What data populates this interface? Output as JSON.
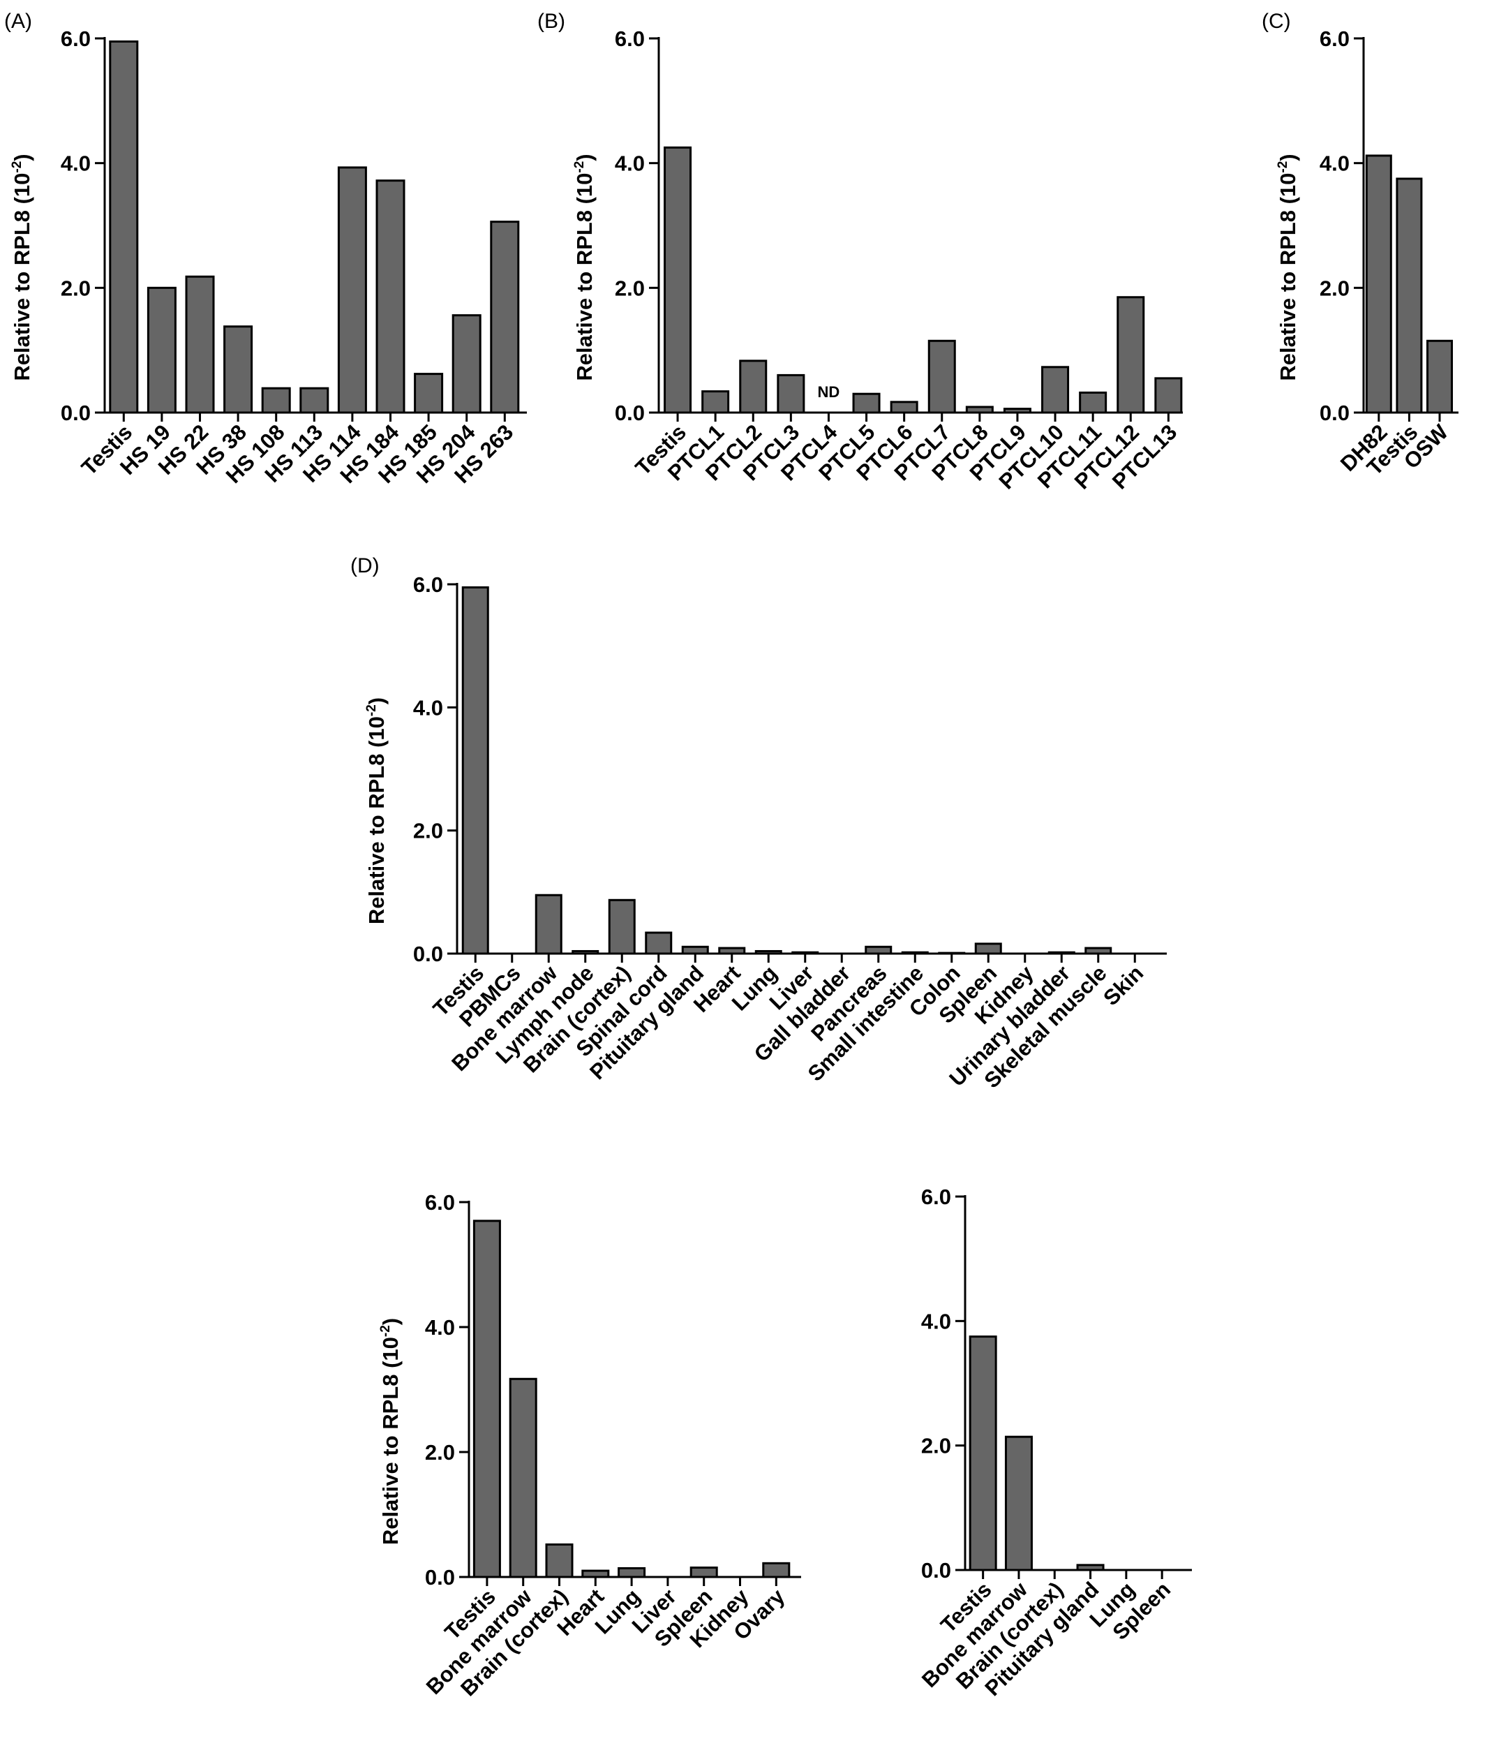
{
  "bar_color": "#666666",
  "chart_data": [
    {
      "type": "bar",
      "panel_label": "(A)",
      "ylabel": "Relative to RPL8 (10",
      "ylabel_exp": "-2",
      "ylabel_close": ")",
      "ylim": [
        0,
        6.0
      ],
      "yticks": [
        "0.0",
        "2.0",
        "4.0",
        "6.0"
      ],
      "categories": [
        "Testis",
        "HS 19",
        "HS 22",
        "HS 38",
        "HS 108",
        "HS 113",
        "HS 114",
        "HS 184",
        "HS 185",
        "HS 204",
        "HS 263"
      ],
      "values": [
        5.95,
        2.0,
        2.18,
        1.38,
        0.39,
        0.39,
        3.93,
        3.72,
        0.62,
        1.56,
        3.06
      ]
    },
    {
      "type": "bar",
      "panel_label": "(B)",
      "ylabel": "Relative to RPL8 (10",
      "ylabel_exp": "-2",
      "ylabel_close": ")",
      "ylim": [
        0,
        6.0
      ],
      "yticks": [
        "0.0",
        "2.0",
        "4.0",
        "6.0"
      ],
      "categories": [
        "Testis",
        "PTCL1",
        "PTCL2",
        "PTCL3",
        "PTCL4",
        "PTCL5",
        "PTCL6",
        "PTCL7",
        "PTCL8",
        "PTCL9",
        "PTCL10",
        "PTCL11",
        "PTCL12",
        "PTCL13"
      ],
      "values": [
        4.25,
        0.34,
        0.83,
        0.6,
        0,
        0.3,
        0.17,
        1.15,
        0.09,
        0.06,
        0.73,
        0.32,
        1.85,
        0.55
      ],
      "annotations": [
        {
          "category": "PTCL4",
          "text": "ND"
        }
      ]
    },
    {
      "type": "bar",
      "panel_label": "(C)",
      "ylabel": "Relative to RPL8 (10",
      "ylabel_exp": "-2",
      "ylabel_close": ")",
      "ylim": [
        0,
        6.0
      ],
      "yticks": [
        "0.0",
        "2.0",
        "4.0",
        "6.0"
      ],
      "categories": [
        "DH82",
        "Testis",
        "OSW"
      ],
      "values": [
        4.12,
        3.75,
        1.15
      ]
    },
    {
      "type": "bar",
      "panel_label": "(D)",
      "ylabel": "Relative to RPL8 (10",
      "ylabel_exp": "-2",
      "ylabel_close": ")",
      "ylim": [
        0,
        6.0
      ],
      "yticks": [
        "0.0",
        "2.0",
        "4.0",
        "6.0"
      ],
      "categories": [
        "Testis",
        "PBMCs",
        "Bone marrow",
        "Lymph node",
        "Brain (cortex)",
        "Spinal cord",
        "Pituitary gland",
        "Heart",
        "Lung",
        "Liver",
        "Gall bladder",
        "Pancreas",
        "Small intestine",
        "Colon",
        "Spleen",
        "Kidney",
        "Urinary bladder",
        "Skeletal muscle",
        "Skin"
      ],
      "values": [
        5.95,
        0,
        0.95,
        0.04,
        0.87,
        0.34,
        0.11,
        0.09,
        0.04,
        0.02,
        0,
        0.11,
        0.02,
        0.01,
        0.16,
        0,
        0.02,
        0.09,
        0
      ]
    },
    {
      "type": "bar",
      "panel_label": "",
      "ylabel": "Relative to RPL8 (10",
      "ylabel_exp": "-2",
      "ylabel_close": ")",
      "ylim": [
        0,
        6.0
      ],
      "yticks": [
        "0.0",
        "2.0",
        "4.0",
        "6.0"
      ],
      "categories": [
        "Testis",
        "Bone marrow",
        "Brain (cortex)",
        "Heart",
        "Lung",
        "Liver",
        "Spleen",
        "Kidney",
        "Ovary"
      ],
      "values": [
        5.7,
        3.17,
        0.52,
        0.1,
        0.14,
        0,
        0.15,
        0,
        0.22
      ]
    },
    {
      "type": "bar",
      "panel_label": "",
      "ylabel": "",
      "ylabel_exp": "",
      "ylabel_close": "",
      "ylim": [
        0,
        6.0
      ],
      "yticks": [
        "0.0",
        "2.0",
        "4.0",
        "6.0"
      ],
      "categories": [
        "Testis",
        "Bone marrow",
        "Brain (cortex)",
        "Pituitary gland",
        "Lung",
        "Spleen"
      ],
      "values": [
        3.75,
        2.14,
        0,
        0.08,
        0,
        0
      ]
    }
  ]
}
